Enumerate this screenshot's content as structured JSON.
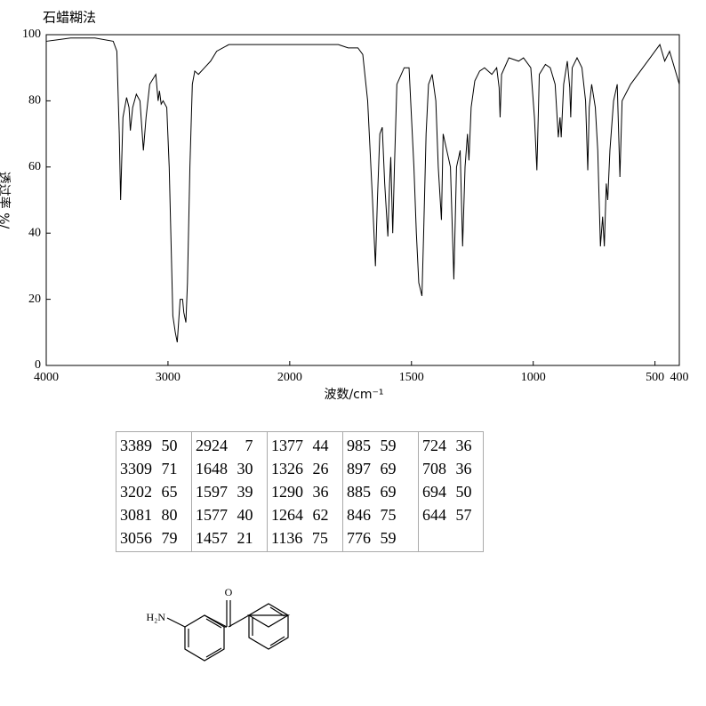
{
  "chart_data": {
    "type": "line",
    "title": "石蜡糊法",
    "x_label": "波数/cm⁻¹",
    "y_label": "透过率 %/",
    "xlim": [
      4000,
      400
    ],
    "x_scale_change": 2000,
    "xticks": [
      4000,
      3000,
      2000,
      1500,
      1000,
      500,
      400
    ],
    "ylim": [
      0,
      100
    ],
    "yticks": [
      0,
      20,
      40,
      60,
      80,
      100
    ],
    "color": "#000000",
    "x": [
      4000,
      3900,
      3800,
      3600,
      3450,
      3420,
      3400,
      3389,
      3370,
      3340,
      3320,
      3309,
      3290,
      3260,
      3230,
      3202,
      3180,
      3150,
      3100,
      3081,
      3070,
      3056,
      3040,
      3010,
      2990,
      2960,
      2940,
      2924,
      2900,
      2880,
      2870,
      2853,
      2840,
      2820,
      2800,
      2780,
      2750,
      2700,
      2650,
      2600,
      2500,
      2000,
      1900,
      1800,
      1760,
      1720,
      1700,
      1680,
      1660,
      1648,
      1640,
      1630,
      1620,
      1610,
      1597,
      1590,
      1585,
      1577,
      1570,
      1560,
      1530,
      1510,
      1490,
      1480,
      1470,
      1457,
      1450,
      1440,
      1430,
      1415,
      1400,
      1390,
      1377,
      1370,
      1355,
      1340,
      1326,
      1315,
      1300,
      1290,
      1280,
      1270,
      1264,
      1255,
      1240,
      1220,
      1200,
      1170,
      1150,
      1140,
      1136,
      1130,
      1100,
      1060,
      1040,
      1010,
      995,
      985,
      975,
      950,
      930,
      910,
      897,
      890,
      885,
      875,
      860,
      850,
      846,
      840,
      820,
      800,
      785,
      776,
      770,
      760,
      745,
      735,
      724,
      715,
      708,
      700,
      694,
      685,
      670,
      655,
      644,
      635,
      600,
      550,
      520,
      500,
      480,
      460,
      440,
      420,
      400
    ],
    "values": [
      98,
      98.5,
      99,
      99,
      98,
      95,
      70,
      50,
      75,
      81,
      78,
      71,
      78,
      82,
      80,
      65,
      75,
      85,
      88,
      80,
      83,
      79,
      80,
      78,
      60,
      15,
      10,
      7,
      20,
      20,
      16,
      13,
      25,
      60,
      85,
      89,
      88,
      90,
      92,
      95,
      97,
      97,
      97,
      97,
      96,
      96,
      94,
      80,
      50,
      30,
      50,
      70,
      72,
      55,
      39,
      55,
      63,
      40,
      60,
      85,
      90,
      90,
      60,
      40,
      25,
      21,
      40,
      70,
      85,
      88,
      80,
      60,
      44,
      70,
      65,
      60,
      26,
      60,
      65,
      36,
      60,
      70,
      62,
      78,
      86,
      89,
      90,
      88,
      90,
      84,
      75,
      88,
      93,
      92,
      93,
      90,
      75,
      59,
      88,
      91,
      90,
      85,
      69,
      75,
      69,
      85,
      92,
      84,
      75,
      90,
      93,
      90,
      80,
      59,
      78,
      85,
      78,
      65,
      36,
      45,
      36,
      55,
      50,
      65,
      80,
      85,
      57,
      80,
      85,
      90,
      93,
      95,
      97,
      92,
      95,
      90,
      85
    ],
    "peak_table": [
      [
        [
          3389,
          50
        ],
        [
          3309,
          71
        ],
        [
          3202,
          65
        ],
        [
          3081,
          80
        ],
        [
          3056,
          79
        ]
      ],
      [
        [
          2924,
          7
        ],
        [
          1648,
          30
        ],
        [
          1597,
          39
        ],
        [
          1577,
          40
        ],
        [
          1457,
          21
        ]
      ],
      [
        [
          1377,
          44
        ],
        [
          1326,
          26
        ],
        [
          1290,
          36
        ],
        [
          1264,
          62
        ],
        [
          1136,
          75
        ]
      ],
      [
        [
          985,
          59
        ],
        [
          897,
          69
        ],
        [
          885,
          69
        ],
        [
          846,
          75
        ],
        [
          776,
          59
        ]
      ],
      [
        [
          724,
          36
        ],
        [
          708,
          36
        ],
        [
          694,
          50
        ],
        [
          644,
          57
        ]
      ]
    ],
    "structure_labels": {
      "amine": "H₂N",
      "oxygen": "O"
    }
  }
}
